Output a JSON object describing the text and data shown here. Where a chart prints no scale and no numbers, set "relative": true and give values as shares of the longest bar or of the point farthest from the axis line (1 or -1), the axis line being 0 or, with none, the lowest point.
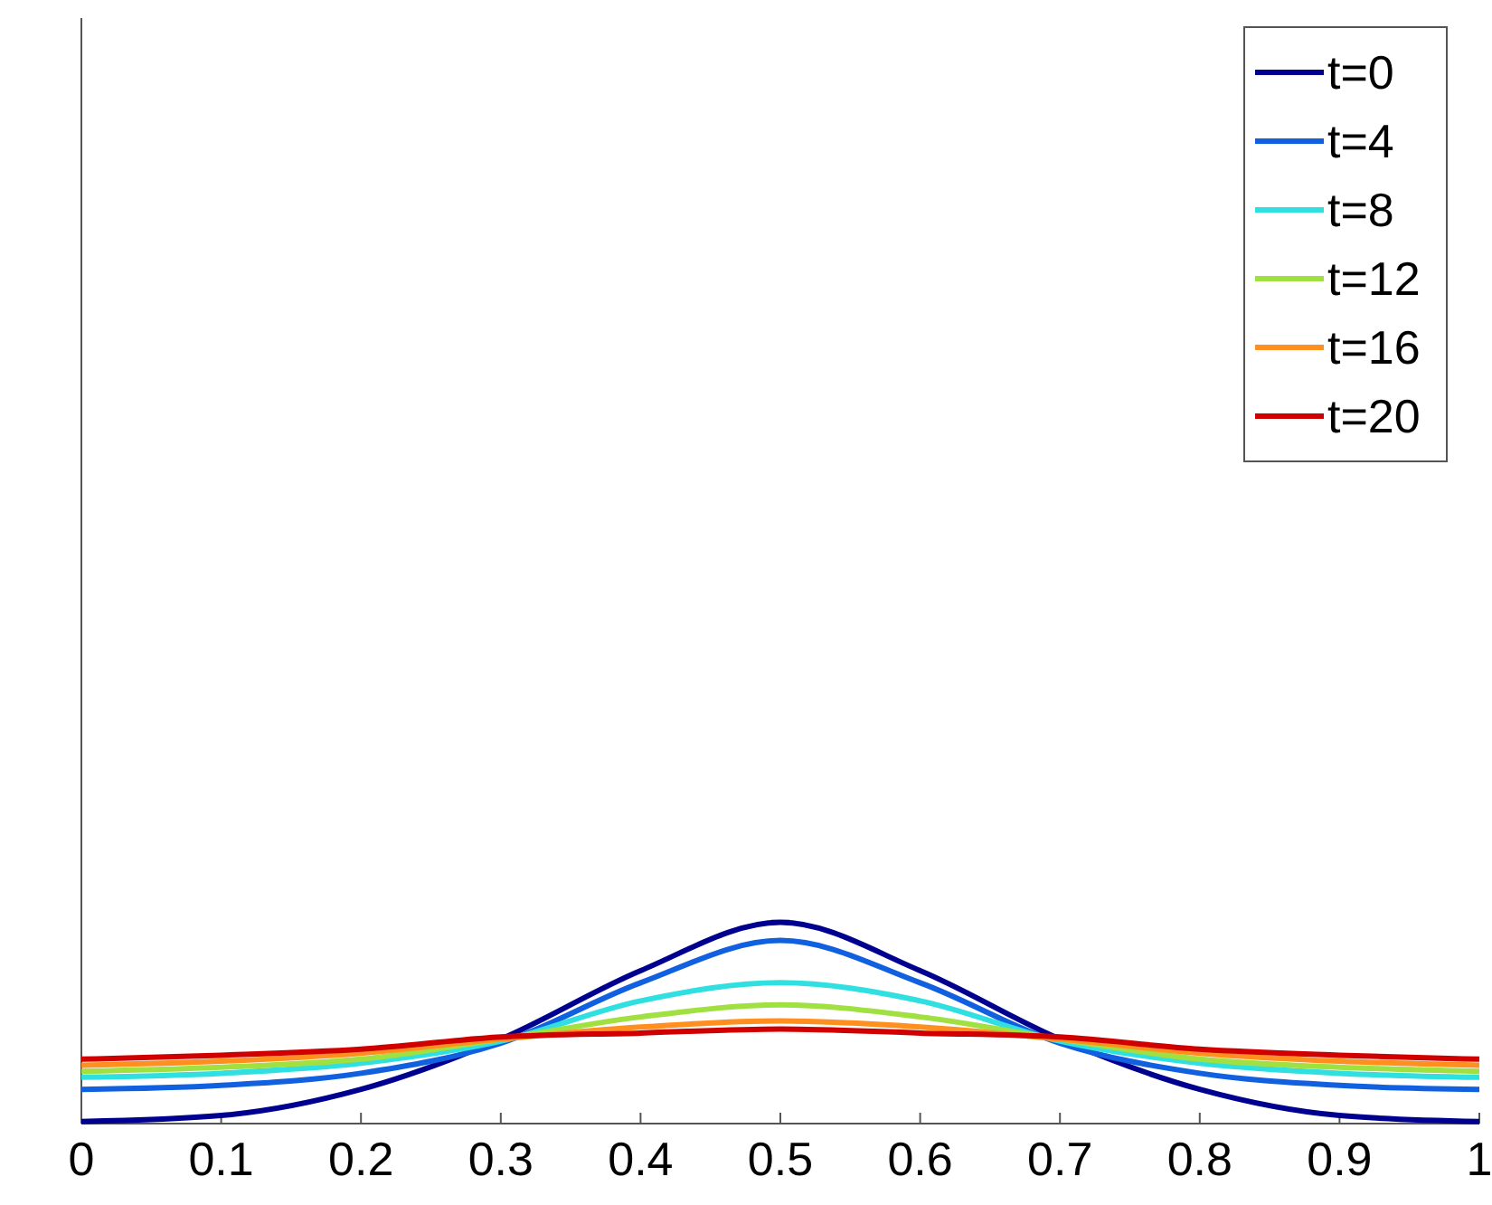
{
  "chart_data": {
    "type": "line",
    "relative": true,
    "x": [
      0,
      0.1,
      0.2,
      0.3,
      0.4,
      0.5,
      0.6,
      0.7,
      0.8,
      0.9,
      1
    ],
    "xlim": [
      0,
      1
    ],
    "xticks": [
      0,
      0.1,
      0.2,
      0.3,
      0.4,
      0.5,
      0.6,
      0.7,
      0.8,
      0.9,
      1
    ],
    "legend": "top right",
    "grid": false,
    "line_style": "solid",
    "marker": "none",
    "series": [
      {
        "name": "t=0",
        "color": "#000090",
        "values": [
          0.01,
          0.04,
          0.17,
          0.42,
          0.76,
          1,
          0.76,
          0.42,
          0.17,
          0.04,
          0.01
        ]
      },
      {
        "name": "t=4",
        "color": "#1060e0",
        "values": [
          0.17,
          0.19,
          0.25,
          0.4,
          0.7,
          0.91,
          0.7,
          0.4,
          0.25,
          0.19,
          0.17
        ]
      },
      {
        "name": "t=8",
        "color": "#30e0e0",
        "values": [
          0.23,
          0.25,
          0.3,
          0.41,
          0.61,
          0.7,
          0.61,
          0.41,
          0.3,
          0.25,
          0.23
        ]
      },
      {
        "name": "t=12",
        "color": "#a0e040",
        "values": [
          0.26,
          0.28,
          0.32,
          0.42,
          0.53,
          0.59,
          0.53,
          0.42,
          0.32,
          0.28,
          0.26
        ]
      },
      {
        "name": "t=16",
        "color": "#ff9020",
        "values": [
          0.29,
          0.31,
          0.35,
          0.42,
          0.48,
          0.51,
          0.48,
          0.42,
          0.35,
          0.31,
          0.29
        ]
      },
      {
        "name": "t=20",
        "color": "#d00000",
        "values": [
          0.32,
          0.34,
          0.37,
          0.43,
          0.45,
          0.47,
          0.45,
          0.43,
          0.37,
          0.34,
          0.32
        ]
      }
    ]
  }
}
